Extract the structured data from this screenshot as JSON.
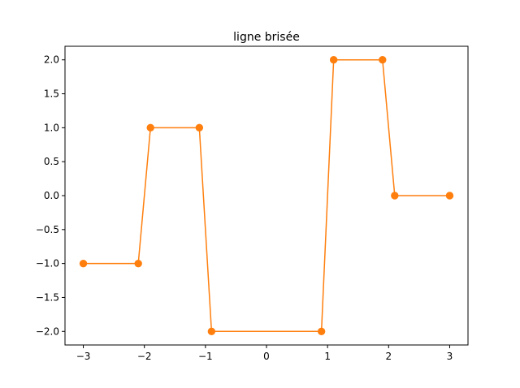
{
  "chart_data": {
    "type": "line",
    "title": "ligne brisée",
    "xlabel": "",
    "ylabel": "",
    "xlim": [
      -3.3,
      3.3
    ],
    "ylim": [
      -2.2,
      2.2
    ],
    "xticks": [
      -3,
      -2,
      -1,
      0,
      1,
      2,
      3
    ],
    "xtick_labels": [
      "−3",
      "−2",
      "−1",
      "0",
      "1",
      "2",
      "3"
    ],
    "yticks": [
      -2.0,
      -1.5,
      -1.0,
      -0.5,
      0.0,
      0.5,
      1.0,
      1.5,
      2.0
    ],
    "ytick_labels": [
      "−2.0",
      "−1.5",
      "−1.0",
      "−0.5",
      "0.0",
      "0.5",
      "1.0",
      "1.5",
      "2.0"
    ],
    "grid": false,
    "legend": "none",
    "series": [
      {
        "color": "#ff7f0e",
        "marker": "circle",
        "x": [
          -3.0,
          -2.1,
          -1.9,
          -1.1,
          -0.9,
          0.9,
          1.1,
          1.9,
          2.1,
          3.0
        ],
        "y": [
          -1,
          -1,
          1,
          1,
          -2,
          -2,
          2,
          2,
          0,
          0
        ]
      }
    ]
  }
}
